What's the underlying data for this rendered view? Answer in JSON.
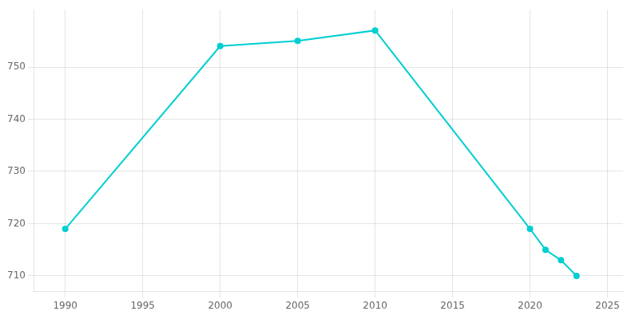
{
  "chart_data": {
    "type": "line",
    "x": [
      1990,
      2000,
      2005,
      2010,
      2020,
      2021,
      2022,
      2023
    ],
    "values": [
      719,
      754,
      755,
      757,
      719,
      715,
      713,
      710
    ],
    "color": "#00CED1",
    "marker": "circle",
    "xlim": [
      1988,
      2026
    ],
    "ylim": [
      707,
      761
    ],
    "xticks": [
      1990,
      1995,
      2000,
      2005,
      2010,
      2015,
      2020,
      2025
    ],
    "yticks": [
      710,
      720,
      730,
      740,
      750
    ],
    "grid": true
  }
}
